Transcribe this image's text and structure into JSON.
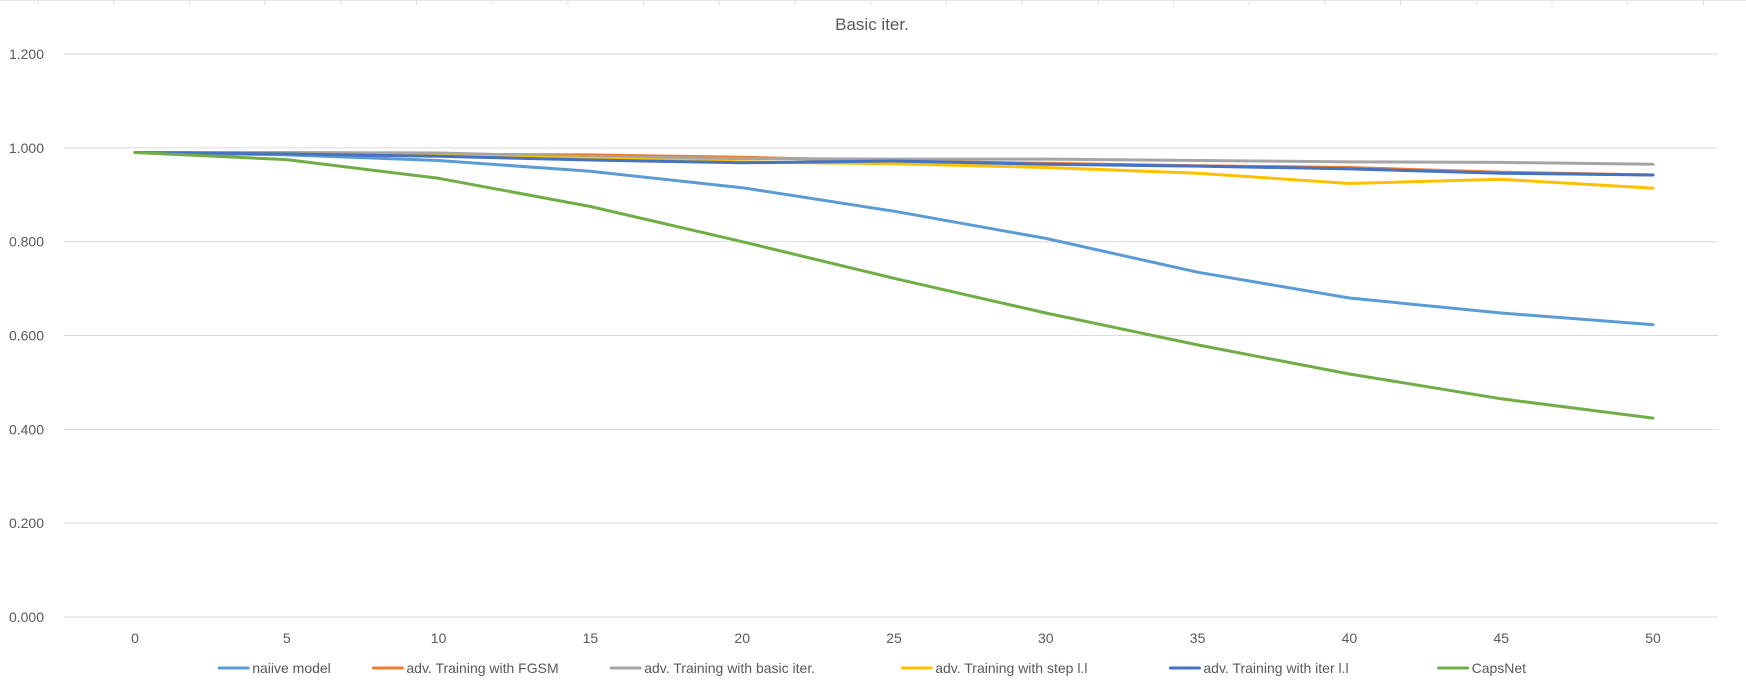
{
  "chart_data": {
    "type": "line",
    "title": "Basic iter.",
    "xlabel": "",
    "ylabel": "",
    "x": [
      0,
      5,
      10,
      15,
      20,
      25,
      30,
      35,
      40,
      45,
      50
    ],
    "x_tick_labels": [
      "0",
      "5",
      "10",
      "15",
      "20",
      "25",
      "30",
      "35",
      "40",
      "45",
      "50"
    ],
    "ylim": [
      0,
      1.2
    ],
    "y_ticks": [
      0,
      0.2,
      0.4,
      0.6,
      0.8,
      1.0,
      1.2
    ],
    "y_tick_labels": [
      "0.000",
      "0.200",
      "0.400",
      "0.600",
      "0.800",
      "1.000",
      "1.200"
    ],
    "grid": true,
    "legend_position": "bottom",
    "series": [
      {
        "name": "naiive model",
        "color": "#5b9bd5",
        "values": [
          0.99,
          0.985,
          0.973,
          0.95,
          0.915,
          0.865,
          0.807,
          0.735,
          0.68,
          0.648,
          0.623
        ]
      },
      {
        "name": "adv. Training with FGSM",
        "color": "#ed7d31",
        "values": [
          0.99,
          0.988,
          0.986,
          0.985,
          0.98,
          0.972,
          0.967,
          0.962,
          0.958,
          0.948,
          0.942
        ]
      },
      {
        "name": "adv. Training with basic iter.",
        "color": "#a5a5a5",
        "values": [
          0.99,
          0.99,
          0.989,
          0.981,
          0.977,
          0.976,
          0.976,
          0.973,
          0.97,
          0.969,
          0.965
        ]
      },
      {
        "name": "adv. Training with step l.l",
        "color": "#ffc000",
        "values": [
          0.99,
          0.987,
          0.983,
          0.978,
          0.97,
          0.966,
          0.958,
          0.946,
          0.924,
          0.933,
          0.914
        ]
      },
      {
        "name": "adv. Training with iter l.l",
        "color": "#4472c4",
        "values": [
          0.99,
          0.987,
          0.982,
          0.974,
          0.968,
          0.972,
          0.965,
          0.961,
          0.955,
          0.946,
          0.942
        ]
      },
      {
        "name": "CapsNet",
        "color": "#70ad47",
        "values": [
          0.99,
          0.975,
          0.935,
          0.875,
          0.8,
          0.722,
          0.648,
          0.58,
          0.518,
          0.465,
          0.424
        ]
      }
    ]
  }
}
